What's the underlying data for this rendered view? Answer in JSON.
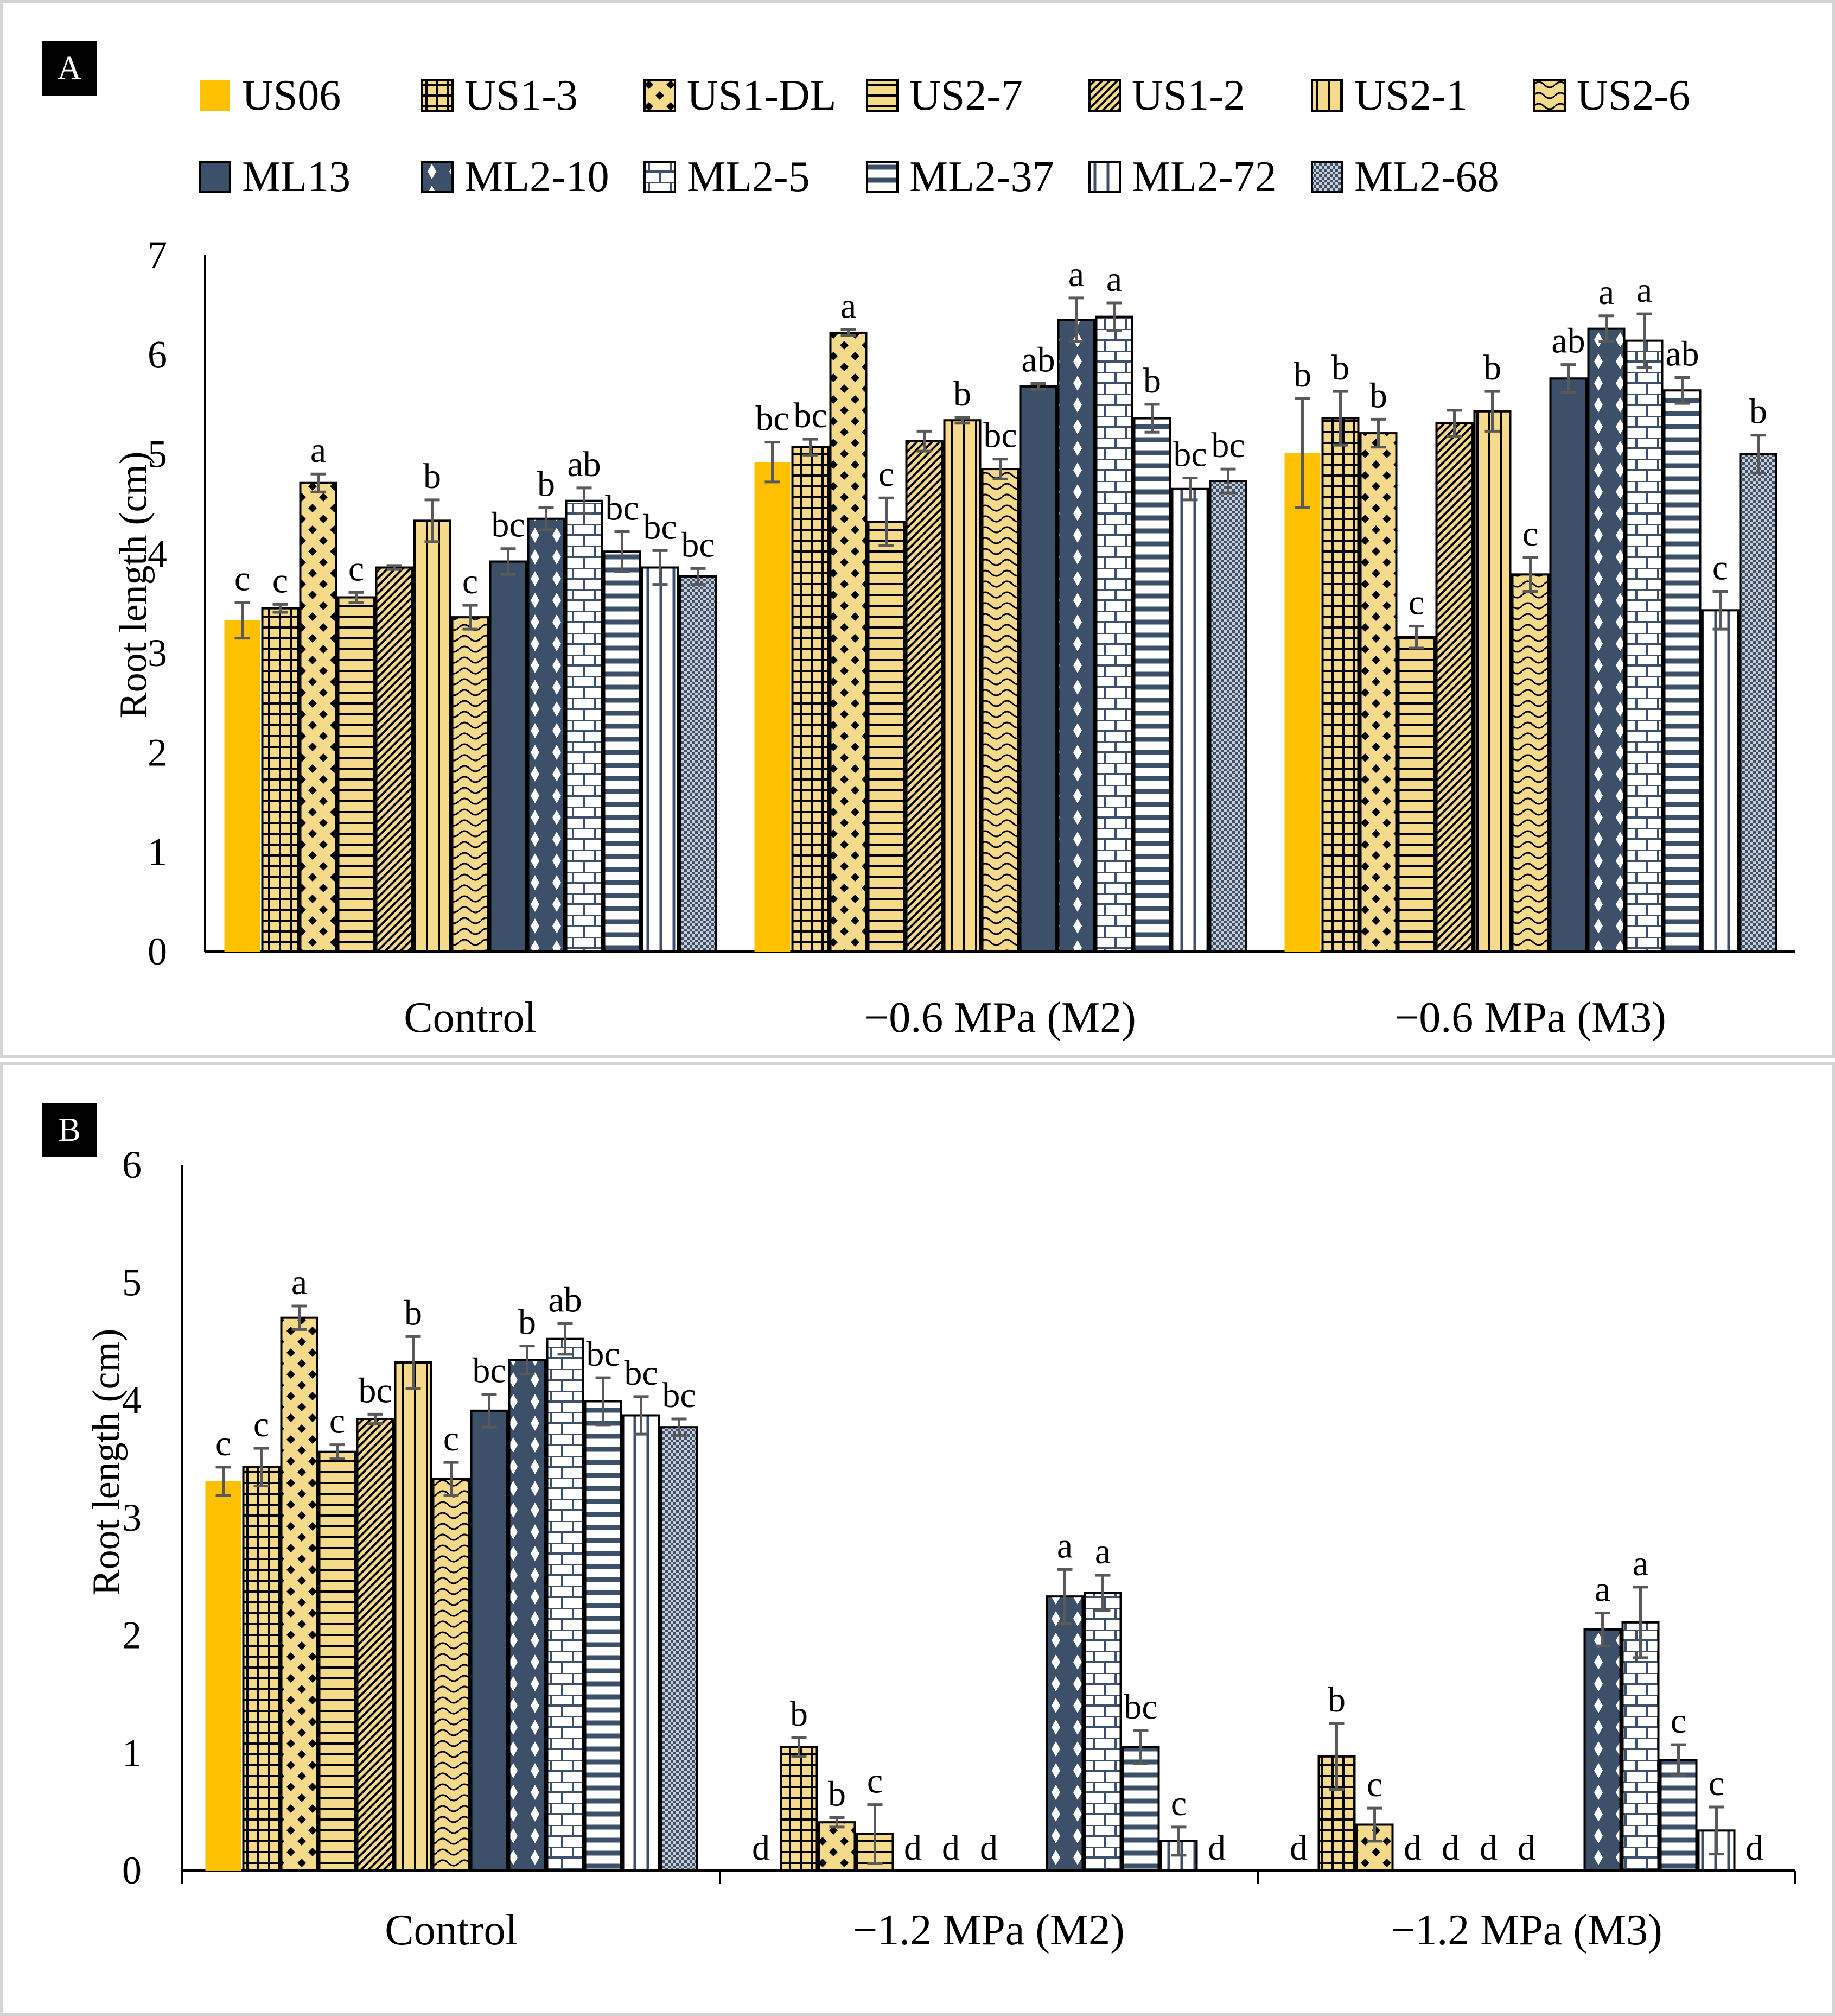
{
  "colors": {
    "gold": "#FFC000",
    "tan": "#F5DA8B",
    "navy": "#3C5169",
    "white": "#FFFFFF",
    "errorbar": "#595959"
  },
  "legend": {
    "row1": [
      {
        "key": "US06",
        "label": "US06"
      },
      {
        "key": "US1-3",
        "label": "US1-3"
      },
      {
        "key": "US1-DL",
        "label": "US1-DL"
      },
      {
        "key": "US2-7",
        "label": "US2-7"
      },
      {
        "key": "US1-2",
        "label": "US1-2"
      },
      {
        "key": "US2-1",
        "label": "US2-1"
      },
      {
        "key": "US2-6",
        "label": "US2-6"
      }
    ],
    "row2": [
      {
        "key": "ML13",
        "label": "ML13"
      },
      {
        "key": "ML2-10",
        "label": "ML2-10"
      },
      {
        "key": "ML2-5",
        "label": "ML2-5"
      },
      {
        "key": "ML2-37",
        "label": "ML2-37"
      },
      {
        "key": "ML2-72",
        "label": "ML2-72"
      },
      {
        "key": "ML2-68",
        "label": "ML2-68"
      }
    ]
  },
  "series_style": [
    {
      "name": "US06",
      "fill": "gold",
      "pattern": "solid"
    },
    {
      "name": "US1-3",
      "fill": "tan",
      "pattern": "grid"
    },
    {
      "name": "US1-DL",
      "fill": "tan",
      "pattern": "diamond-dots"
    },
    {
      "name": "US2-7",
      "fill": "tan",
      "pattern": "hlines"
    },
    {
      "name": "US1-2",
      "fill": "tan",
      "pattern": "diagonal"
    },
    {
      "name": "US2-1",
      "fill": "tan",
      "pattern": "vlines"
    },
    {
      "name": "US2-6",
      "fill": "tan",
      "pattern": "waves"
    },
    {
      "name": "ML13",
      "fill": "navy",
      "pattern": "solid"
    },
    {
      "name": "ML2-10",
      "fill": "white",
      "pattern": "navy-diamonds"
    },
    {
      "name": "ML2-5",
      "fill": "white",
      "pattern": "bricks"
    },
    {
      "name": "ML2-37",
      "fill": "white",
      "pattern": "navy-hlines"
    },
    {
      "name": "ML2-72",
      "fill": "white",
      "pattern": "navy-vlines"
    },
    {
      "name": "ML2-68",
      "fill": "white",
      "pattern": "navy-dots"
    }
  ],
  "chart_data": [
    {
      "panel": "A",
      "type": "bar",
      "ylabel": "Root length (cm)",
      "ylim": [
        0,
        7
      ],
      "yticks": [
        "0",
        "1",
        "2",
        "3",
        "4",
        "5",
        "6",
        "7"
      ],
      "categories": [
        "Control",
        "−0.6 MPa (M2)",
        "−0.6 MPa (M3)"
      ],
      "series": [
        {
          "name": "US06",
          "values": [
            3.33,
            4.92,
            5.01
          ],
          "errors": [
            0.18,
            0.2,
            0.55
          ],
          "letters": [
            "c",
            "bc",
            "b"
          ]
        },
        {
          "name": "US1-3",
          "values": [
            3.45,
            5.07,
            5.36
          ],
          "errors": [
            0.04,
            0.08,
            0.27
          ],
          "letters": [
            "c",
            "bc",
            "b"
          ]
        },
        {
          "name": "US1-DL",
          "values": [
            4.71,
            6.22,
            5.21
          ],
          "errors": [
            0.09,
            0.03,
            0.14
          ],
          "letters": [
            "a",
            "a",
            "b"
          ]
        },
        {
          "name": "US2-7",
          "values": [
            3.56,
            4.32,
            3.16
          ],
          "errors": [
            0.05,
            0.24,
            0.11
          ],
          "letters": [
            "c",
            "c",
            "c"
          ]
        },
        {
          "name": "US1-2",
          "values": [
            3.86,
            5.13,
            5.31
          ],
          "errors": [
            0.02,
            0.1,
            0.13
          ],
          "letters": [
            "",
            "",
            ""
          ]
        },
        {
          "name": "US2-1",
          "values": [
            4.33,
            5.34,
            5.43
          ],
          "errors": [
            0.21,
            0.03,
            0.2
          ],
          "letters": [
            "b",
            "b",
            "b"
          ]
        },
        {
          "name": "US2-6",
          "values": [
            3.36,
            4.85,
            3.79
          ],
          "errors": [
            0.12,
            0.1,
            0.17
          ],
          "letters": [
            "c",
            "bc",
            "c"
          ]
        },
        {
          "name": "ML13",
          "values": [
            3.92,
            5.68,
            5.76
          ],
          "errors": [
            0.13,
            0.03,
            0.14
          ],
          "letters": [
            "bc",
            "ab",
            "ab"
          ]
        },
        {
          "name": "ML2-10",
          "values": [
            4.35,
            6.35,
            6.26
          ],
          "errors": [
            0.11,
            0.22,
            0.13
          ],
          "letters": [
            "b",
            "a",
            "a"
          ]
        },
        {
          "name": "ML2-5",
          "values": [
            4.53,
            6.38,
            6.14
          ],
          "errors": [
            0.13,
            0.14,
            0.27
          ],
          "letters": [
            "ab",
            "a",
            "a"
          ]
        },
        {
          "name": "ML2-37",
          "values": [
            4.02,
            5.36,
            5.64
          ],
          "errors": [
            0.2,
            0.14,
            0.13
          ],
          "letters": [
            "bc",
            "b",
            "ab"
          ]
        },
        {
          "name": "ML2-72",
          "values": [
            3.86,
            4.65,
            3.43
          ],
          "errors": [
            0.17,
            0.11,
            0.19
          ],
          "letters": [
            "bc",
            "bc",
            "c"
          ]
        },
        {
          "name": "ML2-68",
          "values": [
            3.77,
            4.73,
            5.0
          ],
          "errors": [
            0.08,
            0.12,
            0.19
          ],
          "letters": [
            "bc",
            "bc",
            "b"
          ]
        }
      ]
    },
    {
      "panel": "B",
      "type": "bar",
      "ylabel": "Root length (cm)",
      "ylim": [
        0,
        6
      ],
      "yticks": [
        "0",
        "1",
        "2",
        "3",
        "4",
        "5",
        "6"
      ],
      "categories": [
        "Control",
        "−1.2 MPa (M2)",
        "−1.2 MPa (M3)"
      ],
      "series": [
        {
          "name": "US06",
          "values": [
            3.31,
            0,
            0
          ],
          "errors": [
            0.12,
            0,
            0
          ],
          "letters": [
            "c",
            "d",
            "d"
          ]
        },
        {
          "name": "US1-3",
          "values": [
            3.43,
            1.05,
            0.97
          ],
          "errors": [
            0.16,
            0.08,
            0.28
          ],
          "letters": [
            "c",
            "b",
            "b"
          ]
        },
        {
          "name": "US1-DL",
          "values": [
            4.7,
            0.41,
            0.39
          ],
          "errors": [
            0.1,
            0.04,
            0.14
          ],
          "letters": [
            "a",
            "b",
            "c"
          ]
        },
        {
          "name": "US2-7",
          "values": [
            3.56,
            0.31,
            0
          ],
          "errors": [
            0.06,
            0.25,
            0
          ],
          "letters": [
            "c",
            "c",
            "d"
          ]
        },
        {
          "name": "US1-2",
          "values": [
            3.84,
            0,
            0
          ],
          "errors": [
            0.04,
            0,
            0
          ],
          "letters": [
            "bc",
            "d",
            "d"
          ]
        },
        {
          "name": "US2-1",
          "values": [
            4.32,
            0,
            0
          ],
          "errors": [
            0.22,
            0,
            0
          ],
          "letters": [
            "b",
            "d",
            "d"
          ]
        },
        {
          "name": "US2-6",
          "values": [
            3.33,
            0,
            0
          ],
          "errors": [
            0.14,
            0,
            0
          ],
          "letters": [
            "c",
            "d",
            "d"
          ]
        },
        {
          "name": "ML13",
          "values": [
            3.91,
            0,
            0
          ],
          "errors": [
            0.14,
            0,
            0
          ],
          "letters": [
            "bc",
            "",
            ""
          ]
        },
        {
          "name": "ML2-10",
          "values": [
            4.34,
            2.33,
            2.05
          ],
          "errors": [
            0.12,
            0.23,
            0.14
          ],
          "letters": [
            "b",
            "a",
            "a"
          ]
        },
        {
          "name": "ML2-5",
          "values": [
            4.52,
            2.36,
            2.11
          ],
          "errors": [
            0.13,
            0.15,
            0.3
          ],
          "letters": [
            "ab",
            "a",
            "a"
          ]
        },
        {
          "name": "ML2-37",
          "values": [
            3.99,
            1.05,
            0.94
          ],
          "errors": [
            0.2,
            0.14,
            0.13
          ],
          "letters": [
            "bc",
            "bc",
            "c"
          ]
        },
        {
          "name": "ML2-72",
          "values": [
            3.87,
            0.25,
            0.34
          ],
          "errors": [
            0.16,
            0.12,
            0.2
          ],
          "letters": [
            "bc",
            "c",
            "c"
          ]
        },
        {
          "name": "ML2-68",
          "values": [
            3.77,
            0,
            0
          ],
          "errors": [
            0.07,
            0,
            0
          ],
          "letters": [
            "bc",
            "d",
            "d"
          ]
        }
      ]
    }
  ]
}
